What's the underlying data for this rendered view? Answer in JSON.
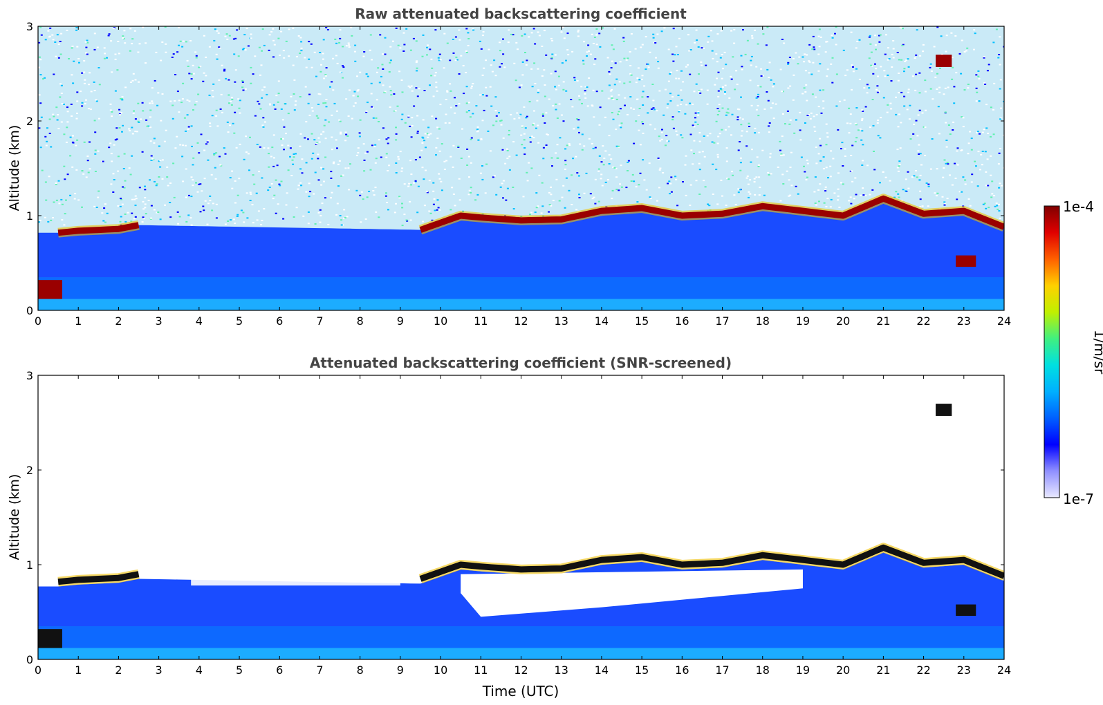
{
  "chart_data": [
    {
      "type": "heatmap",
      "title": "Raw attenuated backscattering coefficient",
      "xlabel": "",
      "ylabel": "Altitude (km)",
      "xlim": [
        0,
        24
      ],
      "ylim": [
        0,
        3
      ],
      "x_ticks": [
        "0",
        "1",
        "2",
        "3",
        "4",
        "5",
        "6",
        "7",
        "8",
        "9",
        "10",
        "11",
        "12",
        "13",
        "14",
        "15",
        "16",
        "17",
        "18",
        "19",
        "20",
        "21",
        "22",
        "23",
        "24"
      ],
      "y_ticks": [
        "0",
        "1",
        "2",
        "3"
      ],
      "cloud_top_km": {
        "hours": [
          0.5,
          1,
          2,
          2.5,
          9.5,
          10.5,
          11,
          12,
          13,
          14,
          15,
          16,
          17,
          18,
          19,
          20,
          21,
          22,
          23,
          24
        ],
        "altitude": [
          0.82,
          0.84,
          0.86,
          0.9,
          0.85,
          1.0,
          0.98,
          0.95,
          0.96,
          1.05,
          1.08,
          1.0,
          1.02,
          1.1,
          1.05,
          1.0,
          1.18,
          1.02,
          1.05,
          0.88
        ]
      }
    },
    {
      "type": "heatmap",
      "title": "Attenuated backscattering coefficient (SNR-screened)",
      "xlabel": "Time (UTC)",
      "ylabel": "Altitude (km)",
      "xlim": [
        0,
        24
      ],
      "ylim": [
        0,
        3
      ],
      "x_ticks": [
        "0",
        "1",
        "2",
        "3",
        "4",
        "5",
        "6",
        "7",
        "8",
        "9",
        "10",
        "11",
        "12",
        "13",
        "14",
        "15",
        "16",
        "17",
        "18",
        "19",
        "20",
        "21",
        "22",
        "23",
        "24"
      ],
      "y_ticks": [
        "0",
        "1",
        "2",
        "3"
      ],
      "cloud_top_km": {
        "hours": [
          0.5,
          1,
          2,
          2.5,
          9.5,
          10.5,
          11,
          12,
          13,
          14,
          15,
          16,
          17,
          18,
          19,
          20,
          21,
          22,
          23,
          24
        ],
        "altitude": [
          0.82,
          0.84,
          0.86,
          0.9,
          0.85,
          1.0,
          0.98,
          0.95,
          0.96,
          1.05,
          1.08,
          1.0,
          1.02,
          1.1,
          1.05,
          1.0,
          1.18,
          1.02,
          1.05,
          0.88
        ]
      }
    }
  ],
  "colorbar": {
    "label": "1/m/sr",
    "max_label": "1e-4",
    "min_label": "1e-7",
    "colors": [
      "#e8e8ff",
      "#9090ff",
      "#0000ff",
      "#0060ff",
      "#00b0ff",
      "#00e0e0",
      "#40f080",
      "#c0f000",
      "#ffd000",
      "#ff6000",
      "#e00000",
      "#800000"
    ]
  }
}
